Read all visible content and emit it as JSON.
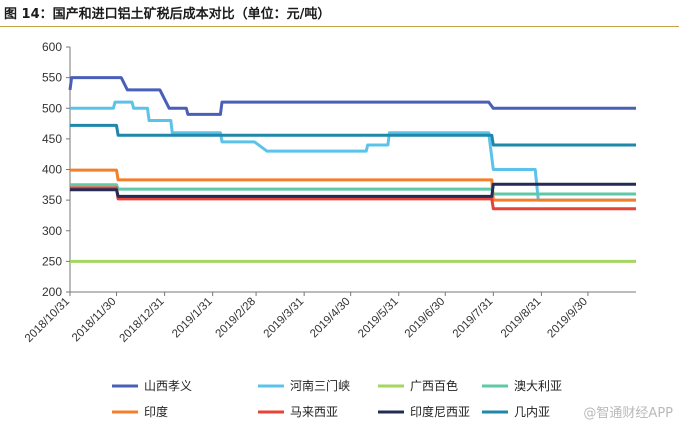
{
  "title": "图 14：国产和进口铝土矿税后成本对比（单位：元/吨）",
  "watermark": "@智通财经APP",
  "chart_data": {
    "type": "line",
    "ylim": [
      200,
      600
    ],
    "yticks": [
      200,
      250,
      300,
      350,
      400,
      450,
      500,
      550,
      600
    ],
    "xlim": [
      "2018-10-31",
      "2019-10-31"
    ],
    "xticks": [
      "2018/10/31",
      "2018/11/30",
      "2018/12/31",
      "2019/1/31",
      "2019/2/28",
      "2019/3/31",
      "2019/4/30",
      "2019/5/31",
      "2019/6/30",
      "2019/7/31",
      "2019/8/31",
      "2019/9/30"
    ],
    "grid": false,
    "legend_position": "bottom",
    "series": [
      {
        "name": "山西孝义",
        "color": "#4a5fb8",
        "points": [
          [
            "2018-10-31",
            530
          ],
          [
            "2018-11-01",
            550
          ],
          [
            "2018-12-03",
            550
          ],
          [
            "2018-12-07",
            530
          ],
          [
            "2018-12-28",
            530
          ],
          [
            "2019-01-03",
            500
          ],
          [
            "2019-01-14",
            500
          ],
          [
            "2019-01-15",
            490
          ],
          [
            "2019-02-05",
            490
          ],
          [
            "2019-02-06",
            510
          ],
          [
            "2019-07-28",
            510
          ],
          [
            "2019-07-31",
            500
          ],
          [
            "2019-10-31",
            500
          ]
        ]
      },
      {
        "name": "河南三门峡",
        "color": "#5bc3ea",
        "points": [
          [
            "2018-10-31",
            500
          ],
          [
            "2018-11-28",
            500
          ],
          [
            "2018-11-29",
            510
          ],
          [
            "2018-12-10",
            510
          ],
          [
            "2018-12-11",
            500
          ],
          [
            "2018-12-20",
            500
          ],
          [
            "2018-12-21",
            480
          ],
          [
            "2019-01-04",
            480
          ],
          [
            "2019-01-05",
            460
          ],
          [
            "2019-02-05",
            460
          ],
          [
            "2019-02-06",
            445
          ],
          [
            "2019-02-27",
            445
          ],
          [
            "2019-03-07",
            430
          ],
          [
            "2019-05-10",
            430
          ],
          [
            "2019-05-11",
            440
          ],
          [
            "2019-05-24",
            440
          ],
          [
            "2019-05-25",
            460
          ],
          [
            "2019-07-28",
            460
          ],
          [
            "2019-07-31",
            400
          ],
          [
            "2019-08-27",
            400
          ],
          [
            "2019-08-29",
            350
          ],
          [
            "2019-10-31",
            350
          ]
        ]
      },
      {
        "name": "广西百色",
        "color": "#a6d662",
        "points": [
          [
            "2018-10-31",
            250
          ],
          [
            "2019-10-31",
            250
          ]
        ]
      },
      {
        "name": "澳大利亚",
        "color": "#5fc8a6",
        "points": [
          [
            "2018-10-31",
            375
          ],
          [
            "2018-11-30",
            375
          ],
          [
            "2018-12-01",
            368
          ],
          [
            "2019-07-30",
            368
          ],
          [
            "2019-07-31",
            360
          ],
          [
            "2019-10-31",
            360
          ]
        ]
      },
      {
        "name": "印度",
        "color": "#f47f2a",
        "points": [
          [
            "2018-10-31",
            399
          ],
          [
            "2018-11-30",
            399
          ],
          [
            "2018-12-01",
            383
          ],
          [
            "2019-07-30",
            383
          ],
          [
            "2019-07-31",
            350
          ],
          [
            "2019-10-31",
            350
          ]
        ]
      },
      {
        "name": "马来西亚",
        "color": "#e84336",
        "points": [
          [
            "2018-10-31",
            370
          ],
          [
            "2018-11-30",
            370
          ],
          [
            "2018-12-01",
            352
          ],
          [
            "2019-07-30",
            352
          ],
          [
            "2019-07-31",
            336
          ],
          [
            "2019-10-31",
            336
          ]
        ]
      },
      {
        "name": "印度尼西亚",
        "color": "#232c57",
        "points": [
          [
            "2018-10-31",
            367
          ],
          [
            "2018-11-30",
            367
          ],
          [
            "2018-12-01",
            356
          ],
          [
            "2019-07-30",
            356
          ],
          [
            "2019-07-31",
            376
          ],
          [
            "2019-10-31",
            376
          ]
        ]
      },
      {
        "name": "几内亚",
        "color": "#1e87aa",
        "points": [
          [
            "2018-10-31",
            472
          ],
          [
            "2018-11-30",
            472
          ],
          [
            "2018-12-01",
            456
          ],
          [
            "2019-07-30",
            456
          ],
          [
            "2019-07-31",
            440
          ],
          [
            "2019-10-31",
            440
          ]
        ]
      }
    ]
  }
}
